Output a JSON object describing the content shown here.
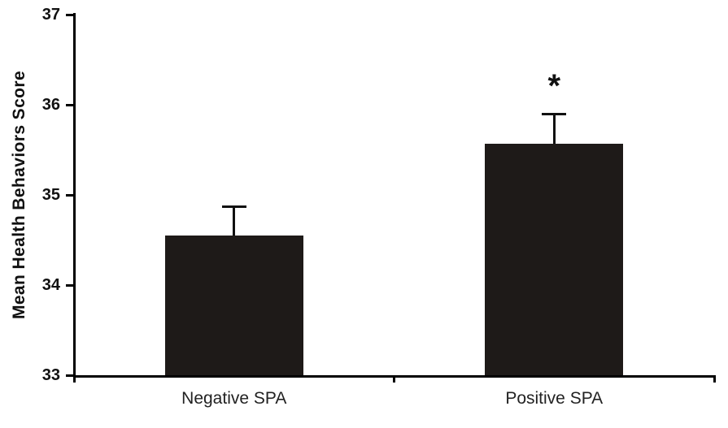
{
  "chart_data": {
    "type": "bar",
    "title": "",
    "xlabel": "",
    "ylabel": "Mean Health Behaviors Score",
    "categories": [
      "Negative SPA",
      "Positive SPA"
    ],
    "values": [
      34.55,
      35.57
    ],
    "errors_plus": [
      0.32,
      0.33
    ],
    "annotations": [
      "",
      "*"
    ],
    "ylim": [
      33,
      37
    ],
    "yticks": [
      33,
      34,
      35,
      36,
      37
    ],
    "grid": false,
    "legend_position": "none",
    "bar_color": "#1e1a18",
    "axis_color": "#000000",
    "error_bar_color": "#111111"
  }
}
